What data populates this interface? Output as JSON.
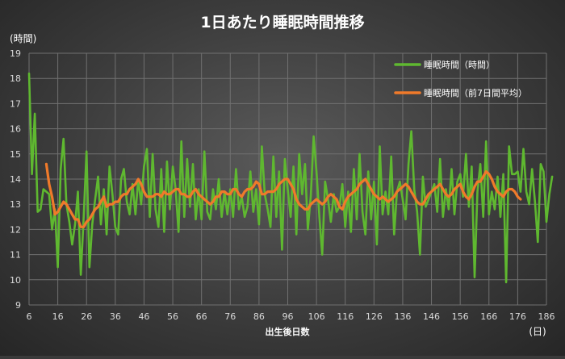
{
  "chart_data": {
    "type": "line",
    "title": "1日あたり睡眠時間推移",
    "xlabel": "出生後日数",
    "ylabel": "(時間)",
    "x_unit_label": "(日)",
    "xlim": [
      6,
      186
    ],
    "ylim": [
      9,
      19
    ],
    "x_ticks": [
      6,
      16,
      26,
      36,
      46,
      56,
      66,
      76,
      86,
      96,
      106,
      116,
      126,
      136,
      146,
      156,
      166,
      176,
      186
    ],
    "y_ticks": [
      9,
      10,
      11,
      12,
      13,
      14,
      15,
      16,
      17,
      18,
      19
    ],
    "grid": true,
    "legend_position": "top-right",
    "colors": {
      "background": "#3a3a3a",
      "grid": "#707070",
      "text": "#ffffff",
      "tick_text": "#d9d9d9"
    },
    "series": [
      {
        "name": "睡眠時間（時間）",
        "color": "#5fb830",
        "x_start": 6,
        "x_step": 1,
        "values": [
          18.2,
          14.2,
          16.6,
          12.7,
          12.8,
          13.6,
          13.5,
          13.4,
          12.0,
          12.8,
          10.5,
          14.4,
          15.6,
          13.0,
          12.3,
          11.4,
          12.2,
          13.5,
          10.2,
          12.5,
          15.1,
          10.5,
          12.2,
          13.2,
          14.1,
          12.2,
          13.6,
          11.8,
          14.5,
          13.4,
          12.1,
          11.8,
          14.0,
          14.4,
          13.1,
          12.6,
          13.8,
          12.6,
          14.0,
          13.0,
          14.5,
          15.2,
          12.5,
          15.0,
          12.8,
          12.1,
          14.4,
          11.9,
          14.7,
          12.8,
          14.5,
          13.6,
          11.9,
          15.5,
          12.5,
          14.8,
          12.9,
          14.6,
          12.4,
          13.6,
          12.4,
          15.1,
          12.7,
          12.4,
          13.6,
          12.8,
          14.0,
          12.5,
          13.5,
          12.6,
          13.6,
          12.5,
          14.4,
          12.8,
          13.3,
          12.5,
          12.9,
          14.3,
          12.7,
          13.6,
          12.2,
          15.3,
          13.4,
          12.8,
          12.1,
          14.9,
          12.5,
          14.3,
          11.2,
          14.8,
          13.6,
          12.5,
          14.5,
          11.8,
          15.0,
          13.4,
          14.6,
          12.0,
          13.3,
          15.7,
          14.3,
          12.5,
          11.0,
          13.9,
          13.2,
          12.3,
          13.4,
          12.7,
          12.9,
          13.8,
          12.1,
          13.5,
          11.9,
          14.4,
          12.4,
          15.0,
          12.7,
          11.8,
          14.3,
          12.4,
          13.9,
          11.4,
          15.3,
          12.6,
          13.5,
          12.6,
          14.9,
          11.8,
          13.5,
          13.9,
          13.2,
          12.4,
          14.6,
          15.9,
          13.6,
          12.7,
          11.0,
          14.1,
          12.9,
          13.2,
          13.5,
          13.8,
          12.7,
          14.8,
          12.5,
          13.6,
          12.8,
          14.4,
          12.6,
          13.9,
          14.2,
          13.3,
          15.0,
          12.9,
          14.5,
          10.1,
          13.5,
          14.6,
          12.5,
          15.5,
          12.6,
          13.5,
          12.8,
          14.1,
          12.5,
          14.2,
          9.9,
          15.3,
          14.2,
          14.2,
          14.3,
          13.5,
          15.2,
          13.5,
          13.0,
          14.4,
          13.1,
          11.5,
          14.6,
          14.3,
          12.3,
          13.4,
          14.1
        ]
      },
      {
        "name": "睡眠時間（前7日間平均）",
        "color": "#f07a2a",
        "x_start": 12,
        "x_step": 1,
        "values": [
          14.6,
          13.8,
          13.3,
          12.6,
          12.7,
          12.9,
          13.1,
          13.0,
          12.8,
          12.6,
          12.4,
          12.4,
          12.1,
          12.1,
          12.3,
          12.4,
          12.6,
          12.8,
          12.9,
          13.1,
          13.3,
          12.9,
          13.0,
          13.0,
          13.1,
          13.1,
          13.3,
          13.4,
          13.4,
          13.6,
          13.7,
          13.8,
          14.0,
          13.8,
          13.5,
          13.3,
          13.3,
          13.3,
          13.4,
          13.4,
          13.3,
          13.5,
          13.4,
          13.4,
          13.5,
          13.6,
          13.6,
          13.4,
          13.4,
          13.3,
          13.3,
          13.5,
          13.6,
          13.4,
          13.3,
          13.2,
          13.1,
          13.0,
          13.1,
          13.3,
          13.3,
          13.5,
          13.5,
          13.4,
          13.4,
          13.6,
          13.6,
          13.4,
          13.3,
          13.5,
          13.6,
          13.6,
          13.7,
          13.9,
          13.8,
          13.4,
          13.4,
          13.5,
          13.5,
          13.5,
          13.6,
          13.8,
          13.9,
          14.0,
          14.0,
          13.8,
          13.6,
          13.2,
          13.0,
          12.9,
          12.8,
          12.8,
          13.0,
          13.1,
          13.2,
          13.1,
          13.0,
          13.1,
          13.3,
          13.4,
          13.3,
          13.2,
          12.9,
          12.8,
          13.1,
          13.3,
          13.4,
          13.5,
          13.6,
          13.8,
          13.9,
          14.0,
          13.8,
          13.6,
          13.4,
          13.3,
          13.2,
          13.3,
          13.2,
          13.1,
          13.2,
          13.3,
          13.5,
          13.6,
          13.7,
          13.8,
          13.7,
          13.5,
          13.3,
          13.1,
          13.0,
          13.0,
          13.2,
          13.4,
          13.5,
          13.6,
          13.7,
          13.8,
          13.6,
          13.4,
          13.3,
          13.4,
          13.6,
          13.7,
          13.8,
          13.5,
          13.3,
          13.2,
          13.4,
          13.7,
          13.9,
          13.9,
          14.1,
          14.3,
          14.2,
          14.0,
          13.7,
          13.5,
          13.4,
          13.3,
          13.5,
          13.6,
          13.6,
          13.5,
          13.3,
          13.2
        ]
      }
    ]
  }
}
